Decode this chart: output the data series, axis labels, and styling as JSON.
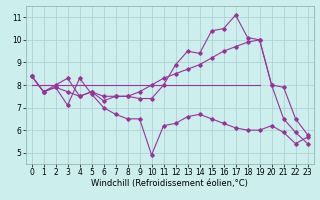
{
  "background_color": "#cceeed",
  "grid_color": "#aacccc",
  "line_color": "#993399",
  "xlim": [
    -0.5,
    23.5
  ],
  "ylim": [
    4.5,
    11.5
  ],
  "yticks": [
    5,
    6,
    7,
    8,
    9,
    10,
    11
  ],
  "xticks": [
    0,
    1,
    2,
    3,
    4,
    5,
    6,
    7,
    8,
    9,
    10,
    11,
    12,
    13,
    14,
    15,
    16,
    17,
    18,
    19,
    20,
    21,
    22,
    23
  ],
  "xlabel": "Windchill (Refroidissement éolien,°C)",
  "curve1_y": [
    8.4,
    7.7,
    7.9,
    7.1,
    8.3,
    7.6,
    7.0,
    6.7,
    6.5,
    6.5,
    4.9,
    6.2,
    6.3,
    6.6,
    6.7,
    6.5,
    6.3,
    6.1,
    6.0,
    6.0,
    6.2,
    5.9,
    5.4,
    5.7
  ],
  "curve2_y": [
    8.4,
    7.7,
    8.0,
    8.3,
    7.5,
    7.7,
    7.3,
    7.5,
    7.5,
    7.4,
    7.4,
    8.0,
    8.9,
    9.5,
    9.4,
    10.4,
    10.5,
    11.1,
    10.1,
    10.0,
    8.0,
    6.5,
    5.9,
    5.4
  ],
  "curve3_y": [
    8.4,
    7.7,
    7.9,
    7.7,
    7.5,
    7.7,
    7.5,
    7.5,
    7.5,
    7.7,
    8.0,
    8.3,
    8.5,
    8.7,
    8.9,
    9.2,
    9.5,
    9.7,
    9.9,
    10.0,
    8.0,
    7.9,
    6.5,
    5.8
  ],
  "hline_y": 8.0,
  "hline_x0": 0,
  "hline_x1": 19,
  "font_size": 6,
  "tick_label_size": 5.5,
  "marker": "D",
  "marker_size": 1.8,
  "line_width": 0.8
}
